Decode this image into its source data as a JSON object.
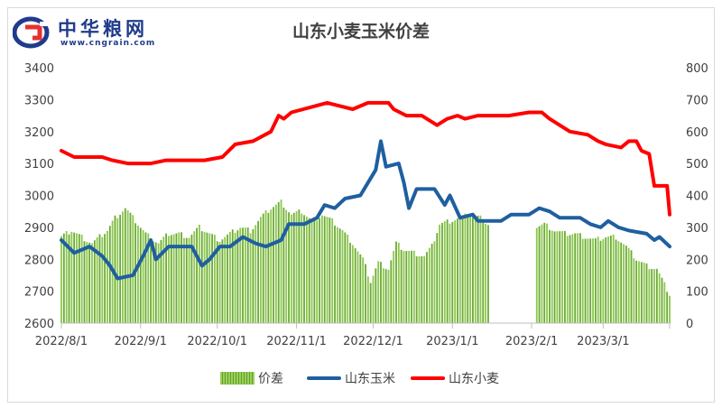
{
  "logo": {
    "name": "中华粮网",
    "url": "www.cngrain.com"
  },
  "chart_data": {
    "type": "bar+line",
    "title": "山东小麦玉米价差",
    "x_tick_labels": [
      "2022/8/1",
      "2022/9/1",
      "2022/10/1",
      "2022/11/1",
      "2022/12/1",
      "2023/1/1",
      "2023/2/1",
      "2023/3/1"
    ],
    "x_range": [
      "2022/8/1",
      "2023/3/27"
    ],
    "y_left": {
      "min": 2600,
      "max": 3400,
      "ticks": [
        2600,
        2700,
        2800,
        2900,
        3000,
        3100,
        3200,
        3300,
        3400
      ]
    },
    "y_right": {
      "min": 0,
      "max": 800,
      "ticks": [
        0,
        100,
        200,
        300,
        400,
        500,
        600,
        700,
        800
      ]
    },
    "legend_position": "bottom",
    "grid": false,
    "series": [
      {
        "name": "价差",
        "kind": "bar",
        "axis": "right",
        "color": "#7dbf3f",
        "points": [
          [
            "2022/8/1",
            270
          ],
          [
            "2022/8/5",
            290
          ],
          [
            "2022/8/9",
            270
          ],
          [
            "2022/8/13",
            250
          ],
          [
            "2022/8/16",
            270
          ],
          [
            "2022/8/19",
            290
          ],
          [
            "2022/8/22",
            330
          ],
          [
            "2022/8/26",
            360
          ],
          [
            "2022/8/30",
            320
          ],
          [
            "2022/9/3",
            280
          ],
          [
            "2022/9/8",
            250
          ],
          [
            "2022/9/12",
            280
          ],
          [
            "2022/9/16",
            280
          ],
          [
            "2022/9/20",
            270
          ],
          [
            "2022/9/24",
            300
          ],
          [
            "2022/9/28",
            280
          ],
          [
            "2022/10/2",
            260
          ],
          [
            "2022/10/6",
            280
          ],
          [
            "2022/10/10",
            300
          ],
          [
            "2022/10/14",
            290
          ],
          [
            "2022/10/18",
            330
          ],
          [
            "2022/10/22",
            360
          ],
          [
            "2022/10/26",
            380
          ],
          [
            "2022/10/30",
            340
          ],
          [
            "2022/11/3",
            350
          ],
          [
            "2022/11/7",
            320
          ],
          [
            "2022/11/11",
            340
          ],
          [
            "2022/11/15",
            320
          ],
          [
            "2022/11/19",
            290
          ],
          [
            "2022/11/23",
            250
          ],
          [
            "2022/11/27",
            200
          ],
          [
            "2022/11/30",
            130
          ],
          [
            "2022/12/3",
            190
          ],
          [
            "2022/12/7",
            170
          ],
          [
            "2022/12/10",
            250
          ],
          [
            "2022/12/13",
            230
          ],
          [
            "2022/12/17",
            220
          ],
          [
            "2022/12/21",
            210
          ],
          [
            "2022/12/24",
            240
          ],
          [
            "2022/12/27",
            310
          ],
          [
            "2022/12/31",
            320
          ],
          [
            "2023/1/4",
            330
          ],
          [
            "2023/1/8",
            340
          ],
          [
            "2023/1/12",
            330
          ],
          [
            "2023/1/15",
            310
          ],
          [
            "2023/1/19",
            null
          ],
          [
            "2023/1/31",
            null
          ],
          [
            "2023/2/2",
            300
          ],
          [
            "2023/2/6",
            310
          ],
          [
            "2023/2/10",
            290
          ],
          [
            "2023/2/14",
            280
          ],
          [
            "2023/2/18",
            280
          ],
          [
            "2023/2/22",
            270
          ],
          [
            "2023/2/26",
            260
          ],
          [
            "2023/3/2",
            270
          ],
          [
            "2023/3/6",
            270
          ],
          [
            "2023/3/10",
            240
          ],
          [
            "2023/3/14",
            200
          ],
          [
            "2023/3/18",
            180
          ],
          [
            "2023/3/22",
            170
          ],
          [
            "2023/3/25",
            120
          ],
          [
            "2023/3/27",
            90
          ]
        ]
      },
      {
        "name": "山东玉米",
        "kind": "line",
        "axis": "left",
        "color": "#1f5fa0",
        "points": [
          [
            "2022/8/1",
            2860
          ],
          [
            "2022/8/6",
            2820
          ],
          [
            "2022/8/12",
            2840
          ],
          [
            "2022/8/17",
            2810
          ],
          [
            "2022/8/20",
            2780
          ],
          [
            "2022/8/23",
            2740
          ],
          [
            "2022/8/29",
            2750
          ],
          [
            "2022/9/2",
            2810
          ],
          [
            "2022/9/5",
            2860
          ],
          [
            "2022/9/7",
            2800
          ],
          [
            "2022/9/12",
            2840
          ],
          [
            "2022/9/16",
            2840
          ],
          [
            "2022/9/21",
            2840
          ],
          [
            "2022/9/25",
            2780
          ],
          [
            "2022/9/28",
            2800
          ],
          [
            "2022/10/2",
            2840
          ],
          [
            "2022/10/6",
            2840
          ],
          [
            "2022/10/11",
            2870
          ],
          [
            "2022/10/16",
            2850
          ],
          [
            "2022/10/20",
            2840
          ],
          [
            "2022/10/26",
            2860
          ],
          [
            "2022/10/29",
            2910
          ],
          [
            "2022/11/4",
            2910
          ],
          [
            "2022/11/9",
            2930
          ],
          [
            "2022/11/12",
            2970
          ],
          [
            "2022/11/16",
            2960
          ],
          [
            "2022/11/20",
            2990
          ],
          [
            "2022/11/26",
            3000
          ],
          [
            "2022/11/29",
            3040
          ],
          [
            "2022/12/2",
            3080
          ],
          [
            "2022/12/4",
            3170
          ],
          [
            "2022/12/6",
            3090
          ],
          [
            "2022/12/11",
            3100
          ],
          [
            "2022/12/13",
            3040
          ],
          [
            "2022/12/15",
            2960
          ],
          [
            "2022/12/18",
            3020
          ],
          [
            "2022/12/25",
            3020
          ],
          [
            "2022/12/29",
            2970
          ],
          [
            "2022/12/31",
            3000
          ],
          [
            "2023/1/4",
            2930
          ],
          [
            "2023/1/9",
            2940
          ],
          [
            "2023/1/11",
            2920
          ],
          [
            "2023/1/20",
            2920
          ],
          [
            "2023/1/24",
            2940
          ],
          [
            "2023/1/31",
            2940
          ],
          [
            "2023/2/4",
            2960
          ],
          [
            "2023/2/8",
            2950
          ],
          [
            "2023/2/12",
            2930
          ],
          [
            "2023/2/20",
            2930
          ],
          [
            "2023/2/24",
            2910
          ],
          [
            "2023/2/28",
            2900
          ],
          [
            "2023/3/3",
            2920
          ],
          [
            "2023/3/7",
            2900
          ],
          [
            "2023/3/11",
            2890
          ],
          [
            "2023/3/18",
            2880
          ],
          [
            "2023/3/21",
            2860
          ],
          [
            "2023/3/23",
            2870
          ],
          [
            "2023/3/27",
            2840
          ]
        ]
      },
      {
        "name": "山东小麦",
        "kind": "line",
        "axis": "left",
        "color": "#ff0000",
        "points": [
          [
            "2022/8/1",
            3140
          ],
          [
            "2022/8/6",
            3120
          ],
          [
            "2022/8/11",
            3120
          ],
          [
            "2022/8/17",
            3120
          ],
          [
            "2022/8/21",
            3110
          ],
          [
            "2022/8/27",
            3100
          ],
          [
            "2022/9/5",
            3100
          ],
          [
            "2022/9/11",
            3110
          ],
          [
            "2022/9/26",
            3110
          ],
          [
            "2022/10/3",
            3120
          ],
          [
            "2022/10/8",
            3160
          ],
          [
            "2022/10/15",
            3170
          ],
          [
            "2022/10/22",
            3200
          ],
          [
            "2022/10/25",
            3250
          ],
          [
            "2022/10/27",
            3240
          ],
          [
            "2022/10/30",
            3260
          ],
          [
            "2022/11/13",
            3290
          ],
          [
            "2022/11/23",
            3270
          ],
          [
            "2022/11/29",
            3290
          ],
          [
            "2022/12/7",
            3290
          ],
          [
            "2022/12/9",
            3270
          ],
          [
            "2022/12/14",
            3250
          ],
          [
            "2022/12/20",
            3250
          ],
          [
            "2022/12/26",
            3220
          ],
          [
            "2022/12/30",
            3240
          ],
          [
            "2023/1/3",
            3250
          ],
          [
            "2023/1/6",
            3240
          ],
          [
            "2023/1/11",
            3250
          ],
          [
            "2023/1/16",
            3250
          ],
          [
            "2023/1/23",
            3250
          ],
          [
            "2023/1/31",
            3260
          ],
          [
            "2023/2/5",
            3260
          ],
          [
            "2023/2/8",
            3240
          ],
          [
            "2023/2/12",
            3220
          ],
          [
            "2023/2/16",
            3200
          ],
          [
            "2023/2/23",
            3190
          ],
          [
            "2023/2/27",
            3170
          ],
          [
            "2023/3/2",
            3160
          ],
          [
            "2023/3/8",
            3150
          ],
          [
            "2023/3/11",
            3170
          ],
          [
            "2023/3/14",
            3170
          ],
          [
            "2023/3/16",
            3140
          ],
          [
            "2023/3/19",
            3130
          ],
          [
            "2023/3/21",
            3030
          ],
          [
            "2023/3/26",
            3030
          ],
          [
            "2023/3/27",
            2940
          ]
        ]
      }
    ]
  }
}
